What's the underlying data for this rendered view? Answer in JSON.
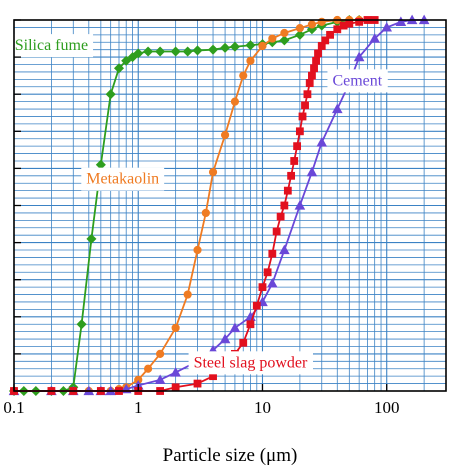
{
  "chart_data": {
    "type": "line",
    "xlabel": "Particle size (μm)",
    "ylabel": "",
    "x_scale": "log",
    "xlim": [
      0.1,
      300
    ],
    "ylim": [
      0,
      100
    ],
    "x_ticks": [
      {
        "value": 0.1,
        "label": "0.1"
      },
      {
        "value": 1,
        "label": "1"
      },
      {
        "value": 10,
        "label": "10"
      },
      {
        "value": 100,
        "label": "100"
      }
    ],
    "y_ticks": [
      0,
      10,
      20,
      30,
      40,
      50,
      60,
      70,
      80,
      90,
      100
    ],
    "grid": true,
    "series": [
      {
        "name": "Silica fume",
        "color": "#2e9e1e",
        "marker": "diamond",
        "label_pos": [
          0.2,
          93.5
        ],
        "x": [
          0.1,
          0.12,
          0.15,
          0.2,
          0.25,
          0.3,
          0.35,
          0.42,
          0.5,
          0.6,
          0.7,
          0.8,
          0.9,
          1,
          1.2,
          1.5,
          2,
          2.5,
          3,
          4,
          5,
          6,
          8,
          10,
          12,
          15,
          20,
          25,
          30,
          40,
          50,
          60
        ],
        "y": [
          0,
          0,
          0,
          0,
          0,
          1,
          18,
          41,
          61,
          80,
          87,
          89,
          90,
          91,
          91.5,
          91.5,
          91.5,
          91.5,
          91.8,
          92,
          92.5,
          92.8,
          93.2,
          93.5,
          94,
          94.5,
          96,
          97.5,
          98.5,
          99.5,
          100,
          100
        ]
      },
      {
        "name": "Metakaolin",
        "color": "#ef7b22",
        "marker": "circle",
        "label_pos": [
          0.75,
          57.5
        ],
        "x": [
          0.1,
          0.2,
          0.3,
          0.4,
          0.5,
          0.6,
          0.7,
          0.8,
          1,
          1.2,
          1.5,
          2,
          2.5,
          3,
          3.5,
          4,
          5,
          6,
          7,
          8,
          10,
          12,
          15,
          20,
          25,
          30,
          40,
          50,
          60
        ],
        "y": [
          0,
          0,
          0,
          0,
          0,
          0,
          0.5,
          1,
          3,
          6,
          10,
          17,
          26,
          38,
          48,
          59,
          69,
          78,
          85,
          89,
          93,
          95,
          96.5,
          97.8,
          98.8,
          99.5,
          100,
          100,
          100
        ]
      },
      {
        "name": "Cement",
        "color": "#6a48d8",
        "marker": "triangle",
        "label_pos": [
          58,
          84
        ],
        "x": [
          0.1,
          0.2,
          0.3,
          0.4,
          0.5,
          0.6,
          0.8,
          1,
          1.5,
          2,
          3,
          4,
          5,
          6,
          8,
          10,
          12,
          15,
          20,
          25,
          30,
          40,
          50,
          60,
          80,
          100,
          130,
          160,
          200
        ],
        "y": [
          0,
          0,
          0,
          0,
          0,
          0,
          0.5,
          1.5,
          3,
          5,
          8,
          11,
          14,
          17,
          20,
          24,
          29,
          38,
          50,
          59,
          67,
          76,
          83,
          90,
          95,
          98,
          99.5,
          100,
          100
        ]
      },
      {
        "name": "Steel slag powder",
        "color": "#e2101e",
        "marker": "square",
        "label_pos": [
          8,
          8
        ],
        "x": [
          0.1,
          0.2,
          0.3,
          0.5,
          0.7,
          1,
          1.5,
          2,
          3,
          4,
          5,
          6,
          7,
          8,
          9,
          10,
          11,
          12,
          13,
          14,
          15,
          16,
          17,
          18,
          19,
          20,
          21,
          22,
          23,
          24,
          25,
          26,
          27,
          28,
          30,
          32,
          35,
          40,
          45,
          50,
          60,
          70,
          80
        ],
        "y": [
          0,
          0,
          0,
          0,
          0,
          0,
          0,
          1,
          2,
          4,
          7,
          10,
          13,
          18,
          23,
          28,
          32,
          37,
          43,
          47,
          50,
          54,
          58,
          62,
          66,
          70,
          74,
          77,
          80,
          83,
          85,
          87,
          89,
          91,
          93,
          94.5,
          96,
          97.5,
          98.5,
          99,
          99.5,
          100,
          100
        ]
      }
    ]
  }
}
